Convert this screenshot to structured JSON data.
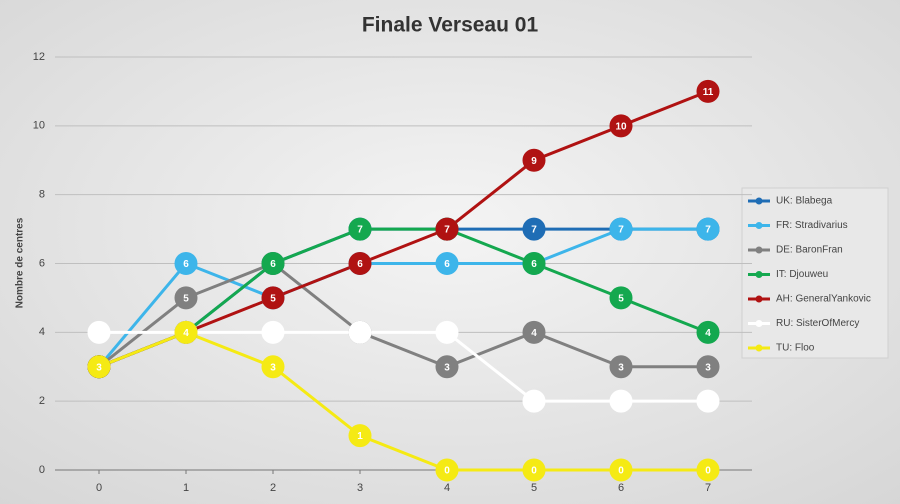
{
  "chart_data": {
    "type": "line",
    "title": "Finale Verseau 01",
    "y_label": "Nombre de centres",
    "x": [
      0,
      1,
      2,
      3,
      4,
      5,
      6,
      7
    ],
    "xlim": [
      0,
      7
    ],
    "xticks": [
      0,
      1,
      2,
      3,
      4,
      5,
      6,
      7
    ],
    "ylim": [
      0,
      12
    ],
    "yticks": [
      0,
      2,
      4,
      6,
      8,
      10,
      12
    ],
    "grid": true,
    "legend": "right",
    "series": [
      {
        "name": "UK: Blabega",
        "color": "#1f6db5",
        "values": [
          3,
          4,
          6,
          7,
          7,
          7,
          7,
          7
        ]
      },
      {
        "name": "FR: Stradivarius",
        "color": "#3db5ea",
        "values": [
          3,
          6,
          5,
          6,
          6,
          6,
          7,
          7
        ]
      },
      {
        "name": "DE: BaronFran",
        "color": "#808080",
        "values": [
          3,
          5,
          6,
          4,
          3,
          4,
          3,
          3
        ]
      },
      {
        "name": "IT: Djouweu",
        "color": "#14a84f",
        "values": [
          3,
          4,
          6,
          7,
          7,
          6,
          5,
          4
        ]
      },
      {
        "name": "AH: GeneralYankovic",
        "color": "#b01212",
        "values": [
          3,
          4,
          5,
          6,
          7,
          9,
          10,
          11
        ]
      },
      {
        "name": "RU: SisterOfMercy",
        "color": "#ffffff",
        "values": [
          4,
          4,
          4,
          4,
          4,
          2,
          2,
          2
        ]
      },
      {
        "name": "TU: Floo",
        "color": "#f5ea14",
        "values": [
          3,
          4,
          3,
          1,
          0,
          0,
          0,
          0
        ]
      }
    ]
  }
}
